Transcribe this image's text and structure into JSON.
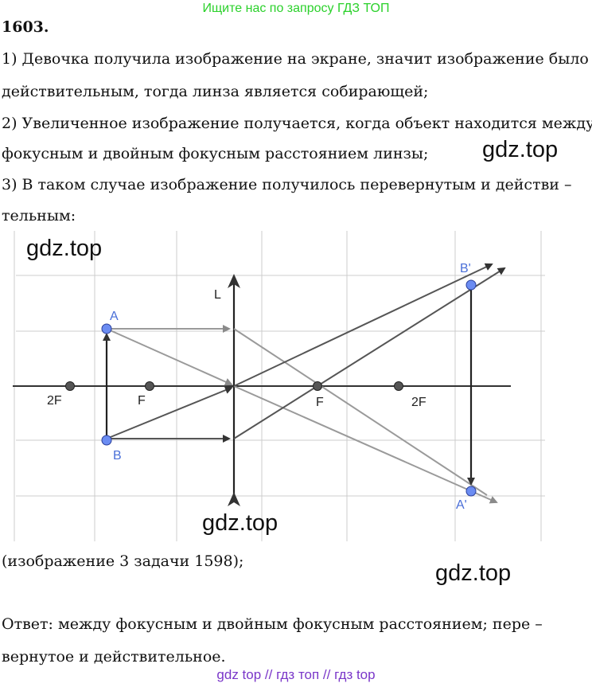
{
  "banner_top": "Ищите нас по запросу ГДЗ ТОП",
  "problem_number": "1603",
  "lines": {
    "l1": "1) Девочка получила изображение на экране, значит изображение было",
    "l2": "действительным, тогда линза является собирающей;",
    "l3": "2) Увеличенное изображение получается, когда объект находится между",
    "l4": "фокусным и двойным фокусным расстоянием линзы;",
    "l5": "3) В таком случае изображение получилось перевернутым и действи –",
    "l6": "тельным:",
    "l7": "(изображение 3 задачи 1598);",
    "l8": "Ответ:  между фокусным и двойным фокусным расстоянием;  пере –",
    "l9": "вернутое и действительное."
  },
  "watermark": "gdz.top",
  "diagram": {
    "lens_label": "L",
    "point_A": "A",
    "point_B": "B",
    "point_A_image": "A'",
    "point_B_image": "B'",
    "focus_left": "F",
    "focus_right": "F",
    "double_focus_left": "2F",
    "double_focus_right": "2F",
    "colors": {
      "grid": "#cccccc",
      "ray": "#555555",
      "ray_light": "#9a9a9a",
      "point_blue": "#6b8cf2",
      "label_blue": "#4a6fd8"
    }
  },
  "banner_bottom": "gdz top  //  гдз топ  //  гдз top"
}
